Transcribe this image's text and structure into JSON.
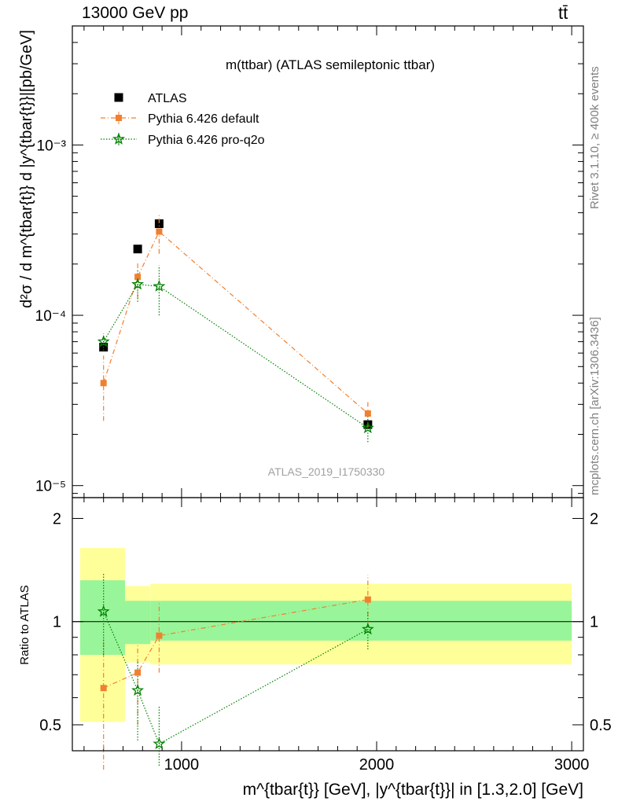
{
  "header": {
    "energy_label": "13000 GeV pp",
    "process_label": "tt̄"
  },
  "side_labels": {
    "rivet": "Rivet 3.1.10, ≥ 400k events",
    "mcplots": "mcplots.cern.ch [arXiv:1306.3436]"
  },
  "colors": {
    "atlas": "#000000",
    "default": "#f08030",
    "proq2o": "#008000",
    "band_inner": "#99f599",
    "band_outer": "#ffff99"
  },
  "chart_data": [
    {
      "type": "scatter",
      "panel": "main",
      "title": "m(ttbar) (ATLAS semileptonic ttbar)",
      "watermark": "ATLAS_2019_I1750330",
      "ylabel": "d²σ / d m^{tbar{t}} d |y^{tbar{t}}|[pb/GeV]",
      "yscale": "log",
      "ylim": [
        8.5e-06,
        0.005
      ],
      "xlim": [
        440,
        3060
      ],
      "ytick_labels": [
        "10⁻⁵",
        "10⁻⁴",
        "10⁻³"
      ],
      "ytick_values": [
        1e-05,
        0.0001,
        0.001
      ],
      "legend": [
        "ATLAS",
        "Pythia 6.426 default",
        "Pythia 6.426 pro-q2o"
      ],
      "series": [
        {
          "name": "ATLAS",
          "x": [
            600,
            775,
            885,
            1955
          ],
          "y": [
            6.5e-05,
            0.000245,
            0.000345,
            2.28e-05
          ]
        },
        {
          "name": "Pythia 6.426 default",
          "x": [
            600,
            775,
            885,
            1955
          ],
          "y": [
            4e-05,
            0.000168,
            0.00031,
            2.65e-05
          ],
          "err_lo": [
            2.4e-05,
            0.000125,
            0.00023,
            2.2e-05
          ],
          "err_hi": [
            5.8e-05,
            0.000205,
            0.00039,
            3.1e-05
          ]
        },
        {
          "name": "Pythia 6.426 pro-q2o",
          "x": [
            600,
            775,
            885,
            1955
          ],
          "y": [
            7e-05,
            0.000152,
            0.000148,
            2.18e-05
          ],
          "err_lo": [
            6.2e-05,
            0.00012,
            0.0001,
            1.8e-05
          ],
          "err_hi": [
            7.8e-05,
            0.000186,
            0.000196,
            2.6e-05
          ]
        }
      ]
    },
    {
      "type": "scatter",
      "panel": "ratio",
      "ylabel": "Ratio to ATLAS",
      "xlabel": "m^{tbar{t}} [GeV], |y^{tbar{t}}| in [1.3,2.0] [GeV]",
      "ylim": [
        0.42,
        2.3
      ],
      "xlim": [
        440,
        3060
      ],
      "ytick_labels": [
        "0.5",
        "1",
        "2"
      ],
      "ytick_values": [
        0.5,
        1,
        2
      ],
      "xtick_labels": [
        "1000",
        "2000",
        "3000"
      ],
      "xtick_values": [
        1000,
        2000,
        3000
      ],
      "bands": [
        {
          "x_lo": 480,
          "x_hi": 710,
          "inner": [
            0.8,
            1.32
          ],
          "outer": [
            0.51,
            1.64
          ]
        },
        {
          "x_lo": 710,
          "x_hi": 840,
          "inner": [
            0.86,
            1.15
          ],
          "outer": [
            0.76,
            1.27
          ]
        },
        {
          "x_lo": 840,
          "x_hi": 3000,
          "inner": [
            0.88,
            1.15
          ],
          "outer": [
            0.75,
            1.29
          ]
        }
      ],
      "series": [
        {
          "name": "Pythia 6.426 default",
          "x": [
            600,
            775,
            885,
            1955
          ],
          "y": [
            0.64,
            0.71,
            0.91,
            1.16
          ],
          "err_lo": [
            0.37,
            0.5,
            0.71,
            0.97
          ],
          "err_hi": [
            0.9,
            0.86,
            1.13,
            1.37
          ]
        },
        {
          "name": "Pythia 6.426 pro-q2o",
          "x": [
            600,
            775,
            885,
            1955
          ],
          "y": [
            1.07,
            0.63,
            0.44,
            0.95
          ],
          "err_lo": [
            0.8,
            0.45,
            0.38,
            0.83
          ],
          "err_hi": [
            1.38,
            0.77,
            0.57,
            1.07
          ]
        }
      ]
    }
  ]
}
